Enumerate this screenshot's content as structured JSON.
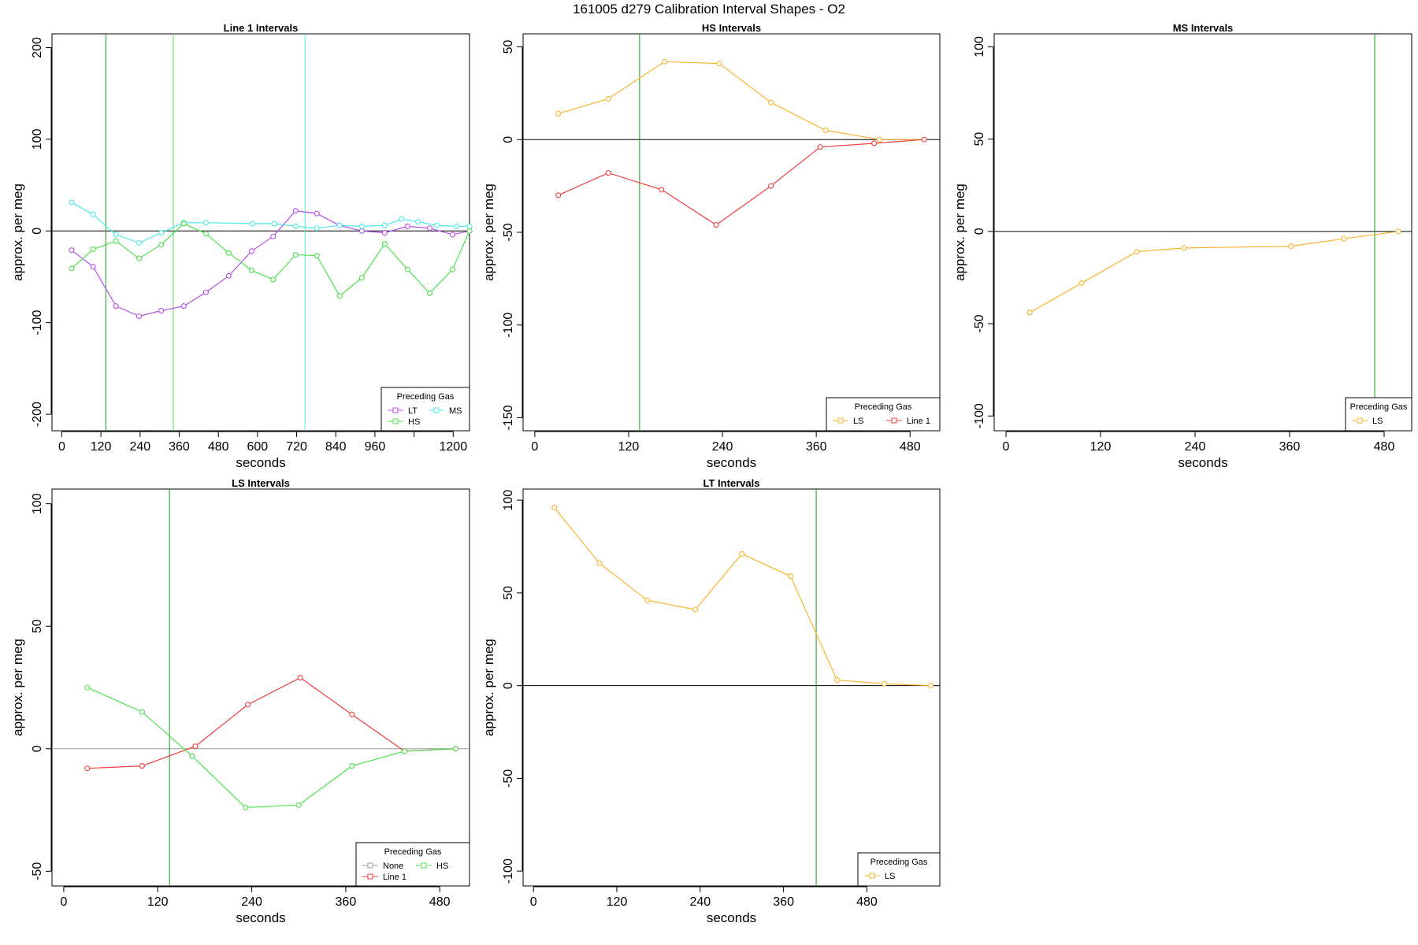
{
  "figure": {
    "title": "161005   d279   Calibration Interval Shapes - O2"
  },
  "colors": {
    "LT": "#b74ee8",
    "MS": "#4fe8e8",
    "HS": "#4fe14f",
    "LS": "#f8b430",
    "Line 1": "#ef4040",
    "None": "#9a9a9a",
    "cursor": "#1a9a1a",
    "zero": "#000000"
  },
  "chart_data": [
    {
      "type": "line",
      "title": "Line 1 Intervals",
      "xlabel": "seconds",
      "ylabel": "approx. per meg",
      "xlim": [
        -30,
        1250
      ],
      "ylim": [
        -218,
        215
      ],
      "xticks": [
        0,
        120,
        240,
        360,
        480,
        600,
        720,
        840,
        960,
        1080,
        1200
      ],
      "xticklabels": [
        "0",
        "120",
        "240",
        "360",
        "480",
        "600",
        "720",
        "840",
        "960",
        "",
        "1200"
      ],
      "yticks": [
        -200,
        -100,
        0,
        100,
        200
      ],
      "vlines": [
        {
          "x": 135,
          "color": "cursor"
        },
        {
          "x": 342,
          "color": "HS"
        },
        {
          "x": 746,
          "color": "MS"
        }
      ],
      "legend": {
        "title": "Preceding Gas",
        "position": "bottom-right",
        "columns": 2,
        "entries": [
          "LT",
          "MS",
          "HS"
        ]
      },
      "series": [
        {
          "name": "LT",
          "x": [
            30,
            96,
            166,
            237,
            305,
            374,
            442,
            512,
            582,
            648,
            717,
            782,
            852,
            920,
            990,
            1060,
            1128,
            1198,
            1250
          ],
          "y": [
            -21,
            -39,
            -82,
            -93,
            -87,
            -82,
            -67,
            -49,
            -22,
            -6,
            22,
            19,
            6,
            0,
            -2,
            5,
            3,
            -4,
            0
          ]
        },
        {
          "name": "MS",
          "x": [
            30,
            96,
            166,
            237,
            305,
            374,
            442,
            585,
            652,
            717,
            782,
            852,
            920,
            990,
            1042,
            1092,
            1150,
            1210,
            1250
          ],
          "y": [
            31,
            18,
            -4,
            -13,
            -2,
            9,
            9,
            8,
            8,
            5,
            3,
            6,
            5,
            6,
            13,
            10,
            6,
            5,
            5
          ]
        },
        {
          "name": "HS",
          "x": [
            30,
            96,
            166,
            237,
            305,
            374,
            442,
            512,
            582,
            648,
            717,
            782,
            852,
            920,
            990,
            1060,
            1128,
            1198,
            1250
          ],
          "y": [
            -41,
            -20,
            -11,
            -30,
            -15,
            8,
            -3,
            -24,
            -43,
            -53,
            -26,
            -27,
            -71,
            -51,
            -14,
            -42,
            -68,
            -42,
            0
          ]
        }
      ]
    },
    {
      "type": "line",
      "title": "HS Intervals",
      "xlabel": "seconds",
      "ylabel": "approx. per meg",
      "xlim": [
        -15,
        518
      ],
      "ylim": [
        -157,
        57
      ],
      "xticks": [
        0,
        120,
        240,
        360,
        480
      ],
      "xticklabels": [
        "0",
        "120",
        "240",
        "360",
        "480"
      ],
      "yticks": [
        -150,
        -100,
        -50,
        0,
        50
      ],
      "vlines": [
        {
          "x": 134,
          "color": "cursor"
        }
      ],
      "legend": {
        "title": "Preceding Gas",
        "position": "bottom-right",
        "columns": 2,
        "entries": [
          "LS",
          "Line 1"
        ]
      },
      "series": [
        {
          "name": "LS",
          "x": [
            30,
            94,
            166,
            236,
            302,
            372,
            441,
            498
          ],
          "y": [
            14,
            22,
            42,
            41,
            20,
            5,
            0,
            0
          ]
        },
        {
          "name": "Line 1",
          "x": [
            30,
            94,
            162,
            232,
            302,
            365,
            434,
            498
          ],
          "y": [
            -30,
            -18,
            -27,
            -46,
            -25,
            -4,
            -2,
            0
          ]
        }
      ]
    },
    {
      "type": "line",
      "title": "MS Intervals",
      "xlabel": "seconds",
      "ylabel": "approx. per meg",
      "xlim": [
        -15,
        515
      ],
      "ylim": [
        -108,
        107
      ],
      "xticks": [
        0,
        120,
        240,
        360,
        480
      ],
      "xticklabels": [
        "0",
        "120",
        "240",
        "360",
        "480"
      ],
      "yticks": [
        -100,
        -50,
        0,
        50,
        100
      ],
      "vlines": [
        {
          "x": 468,
          "color": "cursor"
        }
      ],
      "legend": {
        "title": "Preceding Gas",
        "position": "bottom-right",
        "columns": 1,
        "entries": [
          "LS"
        ]
      },
      "series": [
        {
          "name": "LS",
          "x": [
            30,
            96,
            166,
            226,
            362,
            429,
            498
          ],
          "y": [
            -44,
            -28,
            -11,
            -9,
            -8,
            -4,
            0
          ]
        }
      ]
    },
    {
      "type": "line",
      "title": "LS Intervals",
      "xlabel": "seconds",
      "ylabel": "approx. per meg",
      "xlim": [
        -15,
        518
      ],
      "ylim": [
        -56,
        106
      ],
      "xticks": [
        0,
        120,
        240,
        360,
        480
      ],
      "xticklabels": [
        "0",
        "120",
        "240",
        "360",
        "480"
      ],
      "yticks": [
        -50,
        0,
        50,
        100
      ],
      "vlines": [
        {
          "x": 135,
          "color": "cursor"
        }
      ],
      "zero_line_color": "None",
      "legend": {
        "title": "Preceding Gas",
        "position": "bottom-right",
        "columns": 2,
        "entries": [
          "None",
          "HS",
          "Line 1"
        ]
      },
      "series": [
        {
          "name": "Line 1",
          "x": [
            30,
            100,
            168,
            235,
            302,
            368,
            435,
            500
          ],
          "y": [
            -8,
            -7,
            1,
            18,
            29,
            14,
            -1,
            0
          ]
        },
        {
          "name": "HS",
          "x": [
            30,
            100,
            164,
            232,
            300,
            368,
            435,
            500
          ],
          "y": [
            25,
            15,
            -3,
            -24,
            -23,
            -7,
            -1,
            0
          ]
        }
      ]
    },
    {
      "type": "line",
      "title": "LT Intervals",
      "xlabel": "seconds",
      "ylabel": "approx. per meg",
      "xlim": [
        -15,
        585
      ],
      "ylim": [
        -108,
        106
      ],
      "xticks": [
        0,
        120,
        240,
        360,
        480
      ],
      "xticklabels": [
        "0",
        "120",
        "240",
        "360",
        "480"
      ],
      "yticks": [
        -100,
        -50,
        0,
        50,
        100
      ],
      "vlines": [
        {
          "x": 407,
          "color": "cursor"
        }
      ],
      "legend": {
        "title": "Preceding Gas",
        "position": "bottom-right",
        "columns": 1,
        "entries": [
          "LS"
        ]
      },
      "series": [
        {
          "name": "LS",
          "x": [
            30,
            95,
            164,
            233,
            300,
            370,
            437,
            505,
            572
          ],
          "y": [
            96,
            66,
            46,
            41,
            71,
            59,
            3,
            1,
            0
          ]
        }
      ]
    }
  ]
}
